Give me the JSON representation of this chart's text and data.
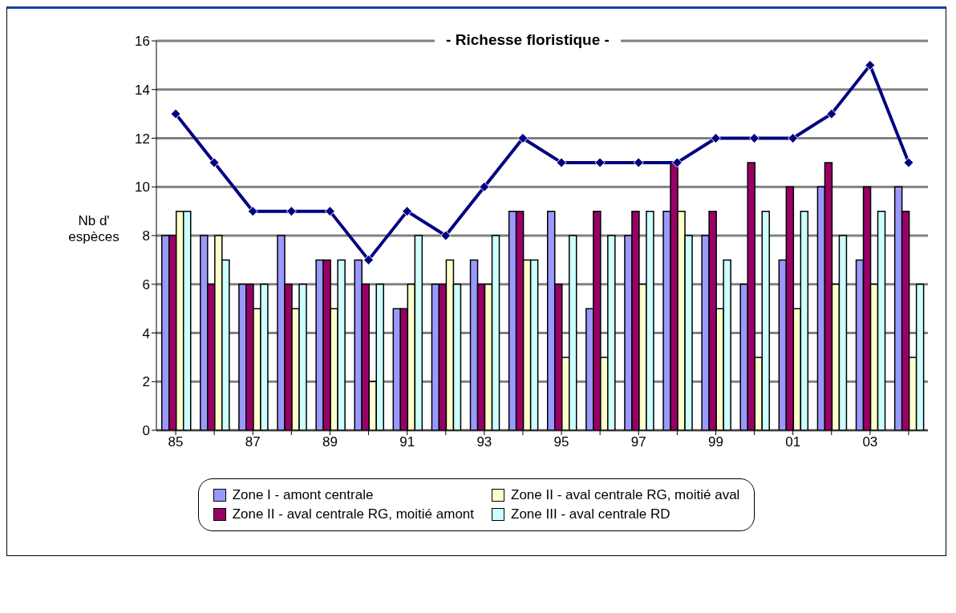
{
  "chart_data": {
    "type": "bar",
    "title": "- Richesse floristique -",
    "ylabel": "Nb d' espèces",
    "categories": [
      "85",
      null,
      "87",
      null,
      "89",
      null,
      "91",
      null,
      "93",
      null,
      "95",
      null,
      "97",
      null,
      "99",
      null,
      "01",
      null,
      "03",
      null
    ],
    "series": [
      {
        "name": "Zone I - amont centrale",
        "color": "#9999ff",
        "values": [
          8,
          8,
          6,
          8,
          7,
          7,
          5,
          6,
          7,
          9,
          9,
          5,
          8,
          9,
          8,
          6,
          7,
          10,
          7,
          10
        ]
      },
      {
        "name": "Zone II - aval centrale RG, moitié amont",
        "color": "#990066",
        "values": [
          8,
          6,
          6,
          6,
          7,
          6,
          5,
          6,
          6,
          9,
          6,
          9,
          9,
          11,
          9,
          11,
          10,
          11,
          10,
          9
        ]
      },
      {
        "name": "Zone II - aval centrale RG, moitié aval",
        "color": "#ffffcc",
        "values": [
          9,
          8,
          5,
          5,
          5,
          2,
          6,
          7,
          6,
          7,
          3,
          3,
          6,
          9,
          5,
          3,
          5,
          6,
          6,
          3
        ]
      },
      {
        "name": "Zone III - aval centrale RD",
        "color": "#ccffff",
        "values": [
          9,
          7,
          6,
          6,
          7,
          6,
          8,
          6,
          8,
          7,
          8,
          8,
          9,
          8,
          7,
          9,
          9,
          8,
          9,
          6
        ]
      },
      {
        "type": "line",
        "color": "#000080",
        "values": [
          13,
          11,
          9,
          9,
          9,
          7,
          9,
          8,
          10,
          12,
          11,
          11,
          11,
          11,
          12,
          12,
          12,
          13,
          15,
          11
        ]
      }
    ],
    "ylim": [
      0,
      16
    ],
    "yticks": [
      0,
      2,
      4,
      6,
      8,
      10,
      12,
      14,
      16
    ],
    "grid": "y",
    "legend": "bottom",
    "marker": "diamond"
  }
}
